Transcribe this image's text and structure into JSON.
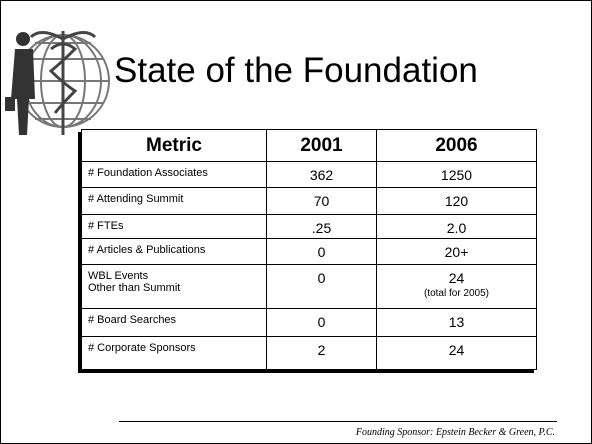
{
  "slide": {
    "title": "State of the Foundation",
    "table": {
      "header": [
        "Metric",
        "2001",
        "2006"
      ],
      "rows": [
        [
          [
            "# Foundation Associates"
          ],
          [
            "362"
          ],
          [
            "1250"
          ]
        ],
        [
          [
            "# Attending Summit"
          ],
          [
            "70"
          ],
          [
            "120"
          ]
        ],
        [
          [
            "# FTEs"
          ],
          [
            ".25"
          ],
          [
            "2.0"
          ]
        ],
        [
          [
            "# Articles & Publications"
          ],
          [
            "0"
          ],
          [
            "20+"
          ]
        ],
        [
          [
            "WBL Events",
            "Other than Summit"
          ],
          [
            "0"
          ],
          [
            "24",
            "(total for 2005)"
          ]
        ],
        [
          [
            "# Board Searches"
          ],
          [
            "0"
          ],
          [
            "13"
          ]
        ],
        [
          [
            "# Corporate Sponsors"
          ],
          [
            "2"
          ],
          [
            "24"
          ]
        ]
      ]
    },
    "footer": "Founding Sponsor:  Epstein Becker & Green, P.C."
  }
}
